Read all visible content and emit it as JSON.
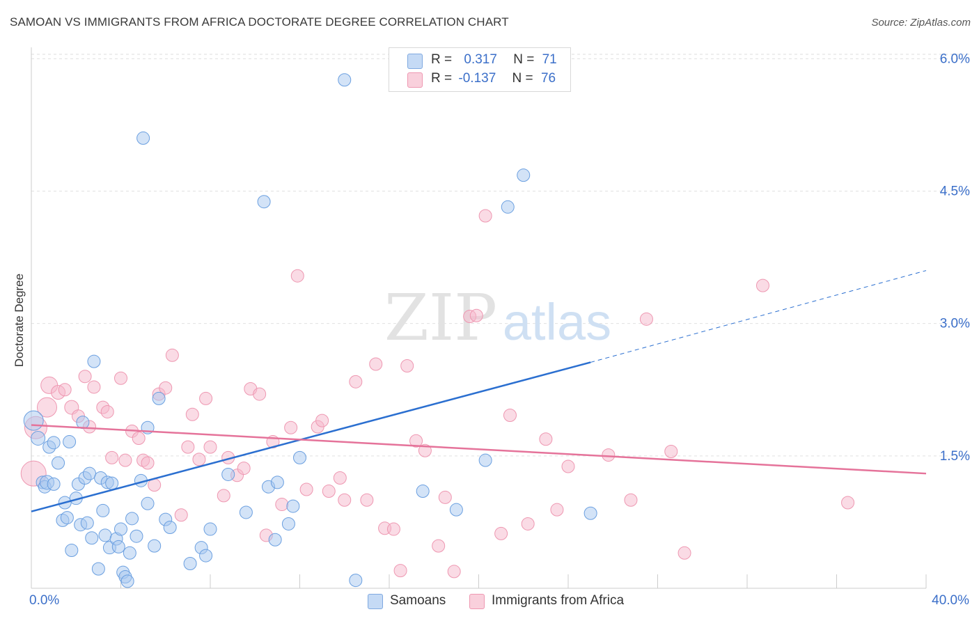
{
  "title": "SAMOAN VS IMMIGRANTS FROM AFRICA DOCTORATE DEGREE CORRELATION CHART",
  "source": "Source: ZipAtlas.com",
  "watermark": {
    "zip": "ZIP",
    "atlas": "atlas"
  },
  "legend": {
    "rows": [
      {
        "r_label": "R =",
        "r_value": "0.317",
        "n_label": "N =",
        "n_value": "71",
        "color": "#a8c8f0"
      },
      {
        "r_label": "R =",
        "r_value": "-0.137",
        "n_label": "N =",
        "n_value": "76",
        "color": "#f5b8cb"
      }
    ]
  },
  "bottom_legend": {
    "items": [
      {
        "label": "Samoans",
        "color": "#a8c8f0"
      },
      {
        "label": "Immigrants from Africa",
        "color": "#f5b8cb"
      }
    ]
  },
  "x_axis": {
    "min_label": "0.0%",
    "max_label": "40.0%"
  },
  "chart_data": {
    "type": "scatter",
    "title": "SAMOAN VS IMMIGRANTS FROM AFRICA DOCTORATE DEGREE CORRELATION CHART",
    "xlabel": "",
    "ylabel": "Doctorate Degree",
    "xlim": [
      0,
      40
    ],
    "ylim": [
      0,
      6.2
    ],
    "y_ticks": [
      {
        "value": 1.5,
        "label": "1.5%"
      },
      {
        "value": 3.0,
        "label": "3.0%"
      },
      {
        "value": 4.5,
        "label": "4.5%"
      },
      {
        "value": 6.0,
        "label": "6.0%"
      }
    ],
    "x_ticks": [
      0,
      4,
      8,
      12,
      16,
      20,
      24,
      28,
      32,
      36,
      40
    ],
    "grid": true,
    "series": [
      {
        "name": "Samoans",
        "color": "#6a9fe0",
        "fill": "#a8c8f0",
        "trend": {
          "x0": 0,
          "y0": 0.87,
          "x1": 25,
          "y1": 2.56,
          "dash_x1": 40,
          "dash_y1": 3.6,
          "color": "#2b6fd0"
        },
        "points": [
          [
            0.1,
            1.9,
            14
          ],
          [
            0.3,
            1.7,
            10
          ],
          [
            0.5,
            1.2,
            9
          ],
          [
            0.6,
            1.15,
            9
          ],
          [
            0.7,
            1.2,
            10
          ],
          [
            0.8,
            1.6,
            9
          ],
          [
            1.0,
            1.65,
            9
          ],
          [
            1.0,
            1.18,
            9
          ],
          [
            1.2,
            1.42,
            9
          ],
          [
            1.4,
            0.77,
            9
          ],
          [
            1.5,
            0.97,
            9
          ],
          [
            1.6,
            0.8,
            9
          ],
          [
            1.7,
            1.66,
            9
          ],
          [
            1.8,
            0.43,
            9
          ],
          [
            2.0,
            1.02,
            9
          ],
          [
            2.1,
            1.18,
            9
          ],
          [
            2.2,
            0.72,
            9
          ],
          [
            2.3,
            1.88,
            9
          ],
          [
            2.4,
            1.25,
            9
          ],
          [
            2.5,
            0.74,
            9
          ],
          [
            2.6,
            1.3,
            9
          ],
          [
            2.7,
            0.57,
            9
          ],
          [
            2.8,
            2.57,
            9
          ],
          [
            3.0,
            0.22,
            9
          ],
          [
            3.1,
            1.25,
            9
          ],
          [
            3.2,
            0.88,
            9
          ],
          [
            3.3,
            0.6,
            9
          ],
          [
            3.4,
            1.2,
            9
          ],
          [
            3.5,
            0.46,
            9
          ],
          [
            3.6,
            1.19,
            9
          ],
          [
            3.8,
            0.56,
            9
          ],
          [
            3.9,
            0.47,
            9
          ],
          [
            4.0,
            0.67,
            9
          ],
          [
            4.1,
            0.18,
            9
          ],
          [
            4.2,
            0.13,
            9
          ],
          [
            4.3,
            0.08,
            9
          ],
          [
            4.4,
            0.4,
            9
          ],
          [
            4.5,
            0.79,
            9
          ],
          [
            4.7,
            0.59,
            9
          ],
          [
            4.9,
            1.22,
            9
          ],
          [
            5.0,
            5.1,
            9
          ],
          [
            5.2,
            0.96,
            9
          ],
          [
            5.2,
            1.82,
            9
          ],
          [
            5.5,
            0.48,
            9
          ],
          [
            5.7,
            2.15,
            9
          ],
          [
            6.0,
            0.78,
            9
          ],
          [
            6.2,
            0.69,
            9
          ],
          [
            7.1,
            0.28,
            9
          ],
          [
            7.6,
            0.46,
            9
          ],
          [
            7.8,
            0.37,
            9
          ],
          [
            8.0,
            0.67,
            9
          ],
          [
            8.8,
            1.29,
            9
          ],
          [
            9.6,
            0.86,
            9
          ],
          [
            10.4,
            4.38,
            9
          ],
          [
            10.6,
            1.15,
            9
          ],
          [
            10.9,
            0.55,
            9
          ],
          [
            11.0,
            1.2,
            9
          ],
          [
            11.5,
            0.73,
            9
          ],
          [
            11.7,
            0.93,
            9
          ],
          [
            12.0,
            1.48,
            9
          ],
          [
            14.0,
            5.76,
            9
          ],
          [
            14.5,
            0.09,
            9
          ],
          [
            17.5,
            1.1,
            9
          ],
          [
            19.0,
            0.89,
            9
          ],
          [
            20.3,
            1.45,
            9
          ],
          [
            21.3,
            4.32,
            9
          ],
          [
            22.0,
            4.68,
            9
          ],
          [
            25.0,
            0.85,
            9
          ]
        ]
      },
      {
        "name": "Immigrants from Africa",
        "color": "#ee97b1",
        "fill": "#f5b8cb",
        "trend": {
          "x0": 0,
          "y0": 1.85,
          "x1": 40,
          "y1": 1.3,
          "color": "#e5739a"
        },
        "points": [
          [
            0.1,
            1.3,
            18
          ],
          [
            0.2,
            1.82,
            16
          ],
          [
            0.8,
            2.3,
            12
          ],
          [
            0.7,
            2.05,
            14
          ],
          [
            1.2,
            2.22,
            10
          ],
          [
            1.5,
            2.25,
            9
          ],
          [
            1.8,
            2.05,
            10
          ],
          [
            2.1,
            1.95,
            9
          ],
          [
            2.4,
            2.4,
            9
          ],
          [
            2.6,
            1.83,
            9
          ],
          [
            2.8,
            2.28,
            9
          ],
          [
            3.2,
            2.05,
            9
          ],
          [
            3.4,
            2.0,
            9
          ],
          [
            3.6,
            1.48,
            9
          ],
          [
            4.0,
            2.38,
            9
          ],
          [
            4.2,
            1.45,
            9
          ],
          [
            4.5,
            1.78,
            9
          ],
          [
            4.8,
            1.7,
            9
          ],
          [
            5.0,
            1.45,
            9
          ],
          [
            5.2,
            1.42,
            9
          ],
          [
            5.5,
            1.17,
            9
          ],
          [
            5.7,
            2.2,
            9
          ],
          [
            6.0,
            2.27,
            9
          ],
          [
            6.3,
            2.64,
            9
          ],
          [
            6.7,
            0.83,
            9
          ],
          [
            7.0,
            1.6,
            9
          ],
          [
            7.2,
            1.97,
            9
          ],
          [
            7.5,
            1.46,
            9
          ],
          [
            7.8,
            2.15,
            9
          ],
          [
            8.0,
            1.6,
            9
          ],
          [
            8.6,
            1.05,
            9
          ],
          [
            8.8,
            1.48,
            9
          ],
          [
            9.2,
            1.28,
            9
          ],
          [
            9.5,
            1.36,
            9
          ],
          [
            9.8,
            2.26,
            9
          ],
          [
            10.2,
            2.2,
            9
          ],
          [
            10.5,
            0.6,
            9
          ],
          [
            10.8,
            1.66,
            9
          ],
          [
            11.2,
            0.95,
            9
          ],
          [
            11.6,
            1.82,
            9
          ],
          [
            11.9,
            3.54,
            9
          ],
          [
            12.3,
            1.12,
            9
          ],
          [
            12.8,
            1.83,
            9
          ],
          [
            13.0,
            1.9,
            9
          ],
          [
            13.3,
            1.1,
            9
          ],
          [
            13.8,
            1.25,
            9
          ],
          [
            14.0,
            1.0,
            9
          ],
          [
            14.5,
            2.34,
            9
          ],
          [
            15.0,
            1.0,
            9
          ],
          [
            15.4,
            2.54,
            9
          ],
          [
            15.8,
            0.68,
            9
          ],
          [
            16.2,
            0.67,
            9
          ],
          [
            16.5,
            0.2,
            9
          ],
          [
            16.8,
            2.52,
            9
          ],
          [
            17.2,
            1.67,
            9
          ],
          [
            17.6,
            1.56,
            9
          ],
          [
            18.2,
            0.48,
            9
          ],
          [
            18.5,
            1.03,
            9
          ],
          [
            18.9,
            0.19,
            9
          ],
          [
            19.6,
            3.08,
            9
          ],
          [
            19.9,
            3.09,
            9
          ],
          [
            20.3,
            4.22,
            9
          ],
          [
            21.0,
            0.62,
            9
          ],
          [
            21.4,
            1.96,
            9
          ],
          [
            22.2,
            0.73,
            9
          ],
          [
            23.0,
            1.69,
            9
          ],
          [
            23.5,
            0.89,
            9
          ],
          [
            24.0,
            1.38,
            9
          ],
          [
            25.8,
            1.51,
            9
          ],
          [
            26.8,
            1.0,
            9
          ],
          [
            27.5,
            3.05,
            9
          ],
          [
            28.6,
            1.55,
            9
          ],
          [
            29.2,
            0.4,
            9
          ],
          [
            32.7,
            3.43,
            9
          ],
          [
            36.5,
            0.97,
            9
          ]
        ]
      }
    ]
  }
}
